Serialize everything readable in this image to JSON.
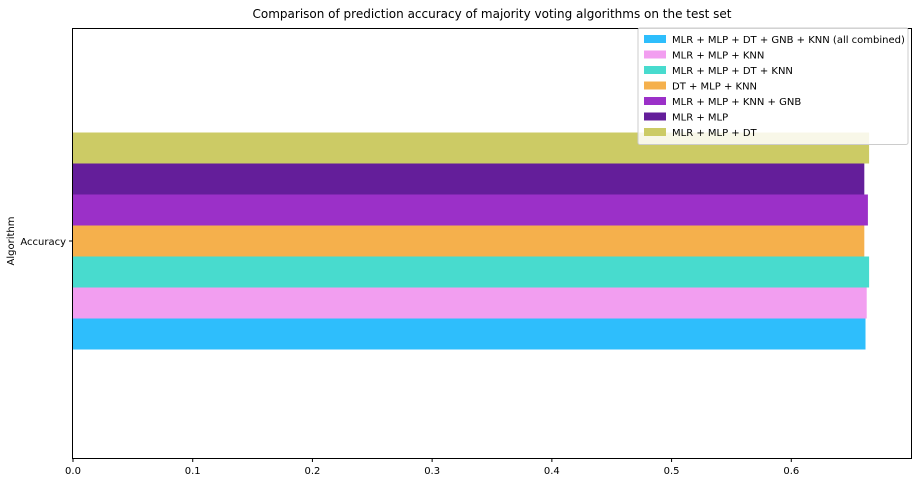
{
  "chart_data": {
    "type": "bar",
    "orientation": "horizontal",
    "title": "Comparison of prediction accuracy of majority voting algorithms on the test set",
    "ylabel": "Algorithm",
    "xlabel": "",
    "categories": [
      "Accuracy"
    ],
    "xlim": [
      0,
      0.7
    ],
    "xticks": [
      "0.0",
      "0.1",
      "0.2",
      "0.3",
      "0.4",
      "0.5",
      "0.6"
    ],
    "grid": false,
    "legend_position": "top-right",
    "series": [
      {
        "name": "MLR + MLP + DT + GNB + KNN (all combined)",
        "color": "#2ebefc",
        "values": [
          0.662
        ]
      },
      {
        "name": "MLR + MLP + KNN",
        "color": "#f29ef0",
        "values": [
          0.663
        ]
      },
      {
        "name": "MLR + MLP + DT + KNN",
        "color": "#48dbce",
        "values": [
          0.665
        ]
      },
      {
        "name": "DT + MLP + KNN",
        "color": "#f5b04c",
        "values": [
          0.661
        ]
      },
      {
        "name": "MLR + MLP + KNN + GNB",
        "color": "#9b30c8",
        "values": [
          0.664
        ]
      },
      {
        "name": "MLR + MLP",
        "color": "#641e9a",
        "values": [
          0.661
        ]
      },
      {
        "name": "MLR + MLP + DT",
        "color": "#cccb65",
        "values": [
          0.665
        ]
      }
    ]
  }
}
